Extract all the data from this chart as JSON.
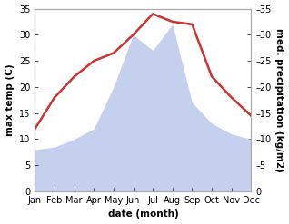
{
  "months": [
    "Jan",
    "Feb",
    "Mar",
    "Apr",
    "May",
    "Jun",
    "Jul",
    "Aug",
    "Sep",
    "Oct",
    "Nov",
    "Dec"
  ],
  "x": [
    1,
    2,
    3,
    4,
    5,
    6,
    7,
    8,
    9,
    10,
    11,
    12
  ],
  "temp": [
    12,
    18,
    22,
    25,
    26.5,
    30,
    34,
    32.5,
    32,
    22,
    18,
    14.5
  ],
  "precip": [
    8,
    8.5,
    10,
    12,
    20,
    30,
    27,
    32,
    17,
    13,
    11,
    10
  ],
  "temp_color": "#cc3333",
  "precip_color": "#c5d0ee",
  "background_color": "#ffffff",
  "ylabel_left": "max temp (C)",
  "ylabel_right": "med. precipitation (kg/m2)",
  "xlabel": "date (month)",
  "ylim": [
    0,
    35
  ],
  "yticks": [
    0,
    5,
    10,
    15,
    20,
    25,
    30,
    35
  ],
  "label_fontsize": 7.5,
  "tick_fontsize": 7,
  "line_width": 1.8
}
